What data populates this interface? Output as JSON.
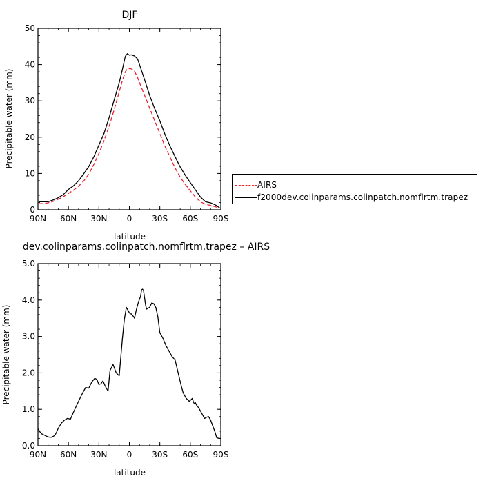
{
  "colors": {
    "airs": "#e8212b",
    "model": "#000000"
  },
  "chart_data": [
    {
      "type": "line",
      "title": "DJF",
      "xlabel": "latitude",
      "ylabel": "Precipitable water (mm)",
      "xlim": [
        90,
        -90
      ],
      "ylim": [
        0,
        50
      ],
      "x_ticks": [
        90,
        60,
        30,
        0,
        -30,
        -60,
        -90
      ],
      "x_tick_labels": [
        "90N",
        "60N",
        "30N",
        "0",
        "30S",
        "60S",
        "90S"
      ],
      "y_ticks": [
        0,
        10,
        20,
        30,
        40,
        50
      ],
      "y_tick_labels": [
        "0",
        "10",
        "20",
        "30",
        "40",
        "50"
      ],
      "legend_location": "right",
      "series": [
        {
          "name": "AIRS",
          "style": "dashed",
          "color": "#e8212b",
          "x": [
            89,
            85,
            80,
            75,
            70,
            65,
            60,
            55,
            50,
            45,
            40,
            35,
            30,
            25,
            20,
            15,
            10,
            7,
            4,
            2,
            0,
            -2,
            -5,
            -8,
            -10,
            -15,
            -20,
            -25,
            -30,
            -35,
            -40,
            -45,
            -50,
            -55,
            -60,
            -65,
            -70,
            -75,
            -80,
            -85,
            -89
          ],
          "y": [
            1.7,
            1.7,
            1.9,
            2.3,
            2.9,
            3.6,
            4.5,
            5.4,
            6.5,
            7.9,
            9.8,
            12.5,
            15.5,
            19.0,
            23.0,
            27.5,
            32.5,
            35.5,
            38.0,
            38.8,
            38.9,
            38.8,
            38.2,
            36.5,
            35.0,
            31.5,
            28.0,
            24.5,
            21.0,
            17.5,
            14.5,
            11.5,
            9.0,
            7.0,
            5.2,
            3.5,
            2.2,
            1.5,
            1.2,
            0.8,
            0.5
          ]
        },
        {
          "name": "f2000dev.colinparams.colinpatch.nomflrtm.trapez",
          "style": "solid",
          "color": "#000000",
          "x": [
            89,
            85,
            80,
            75,
            70,
            65,
            60,
            55,
            50,
            45,
            40,
            35,
            30,
            25,
            20,
            15,
            10,
            7,
            4,
            2,
            0,
            -2,
            -5,
            -8,
            -10,
            -15,
            -20,
            -25,
            -30,
            -35,
            -40,
            -45,
            -50,
            -55,
            -60,
            -65,
            -70,
            -75,
            -80,
            -85,
            -89
          ],
          "y": [
            2.2,
            2.2,
            2.2,
            2.7,
            3.3,
            4.2,
            5.6,
            6.6,
            8.0,
            9.9,
            11.9,
            14.6,
            17.8,
            21.0,
            25.4,
            30.2,
            35.0,
            38.5,
            42.3,
            43.0,
            42.6,
            42.7,
            42.4,
            41.6,
            40.0,
            35.8,
            31.5,
            27.8,
            24.5,
            20.8,
            17.5,
            14.6,
            11.8,
            9.5,
            7.5,
            5.5,
            3.5,
            2.2,
            1.9,
            1.3,
            0.5
          ]
        }
      ]
    },
    {
      "type": "line",
      "title": "dev.colinparams.colinpatch.nomflrtm.trapez – AIRS",
      "xlabel": "latitude",
      "ylabel": "Precipitable water (mm)",
      "xlim": [
        90,
        -90
      ],
      "ylim": [
        0,
        5
      ],
      "x_ticks": [
        90,
        60,
        30,
        0,
        -30,
        -60,
        -90
      ],
      "x_tick_labels": [
        "90N",
        "60N",
        "30N",
        "0",
        "30S",
        "60S",
        "90S"
      ],
      "y_ticks": [
        0,
        1,
        2,
        3,
        4,
        5
      ],
      "y_tick_labels": [
        "0.0",
        "1.0",
        "2.0",
        "3.0",
        "4.0",
        "5.0"
      ],
      "series": [
        {
          "style": "solid",
          "color": "#000000",
          "x": [
            90,
            88,
            86,
            83,
            80,
            77,
            74,
            72,
            70,
            67,
            64,
            61,
            58,
            55,
            52,
            49,
            46,
            43,
            40,
            37,
            34,
            32,
            30,
            28,
            26,
            24,
            21,
            19,
            16,
            13,
            10,
            7,
            5,
            3,
            2,
            1,
            0,
            -1,
            -2,
            -3,
            -4,
            -5,
            -7,
            -9,
            -11,
            -12,
            -13,
            -14,
            -15,
            -16,
            -17,
            -18,
            -20,
            -22,
            -24,
            -26,
            -28,
            -30,
            -33,
            -36,
            -39,
            -42,
            -45,
            -48,
            -51,
            -53,
            -56,
            -59,
            -62,
            -63,
            -64,
            -65,
            -66,
            -68,
            -70,
            -72,
            -74,
            -76,
            -78,
            -80,
            -82,
            -84,
            -86,
            -88,
            -90
          ],
          "y": [
            0.47,
            0.38,
            0.32,
            0.28,
            0.24,
            0.23,
            0.27,
            0.35,
            0.48,
            0.62,
            0.7,
            0.75,
            0.73,
            0.92,
            1.1,
            1.28,
            1.45,
            1.6,
            1.58,
            1.75,
            1.85,
            1.82,
            1.68,
            1.7,
            1.78,
            1.65,
            1.5,
            2.07,
            2.23,
            2.0,
            1.92,
            2.9,
            3.45,
            3.8,
            3.75,
            3.7,
            3.65,
            3.62,
            3.62,
            3.58,
            3.55,
            3.5,
            3.75,
            3.95,
            4.1,
            4.28,
            4.3,
            4.25,
            4.05,
            3.85,
            3.75,
            3.77,
            3.8,
            3.92,
            3.9,
            3.8,
            3.55,
            3.1,
            2.95,
            2.75,
            2.6,
            2.45,
            2.35,
            2.0,
            1.65,
            1.45,
            1.3,
            1.22,
            1.3,
            1.2,
            1.15,
            1.18,
            1.12,
            1.05,
            0.95,
            0.85,
            0.75,
            0.78,
            0.8,
            0.7,
            0.55,
            0.4,
            0.22,
            0.2,
            0.2
          ]
        }
      ]
    }
  ]
}
